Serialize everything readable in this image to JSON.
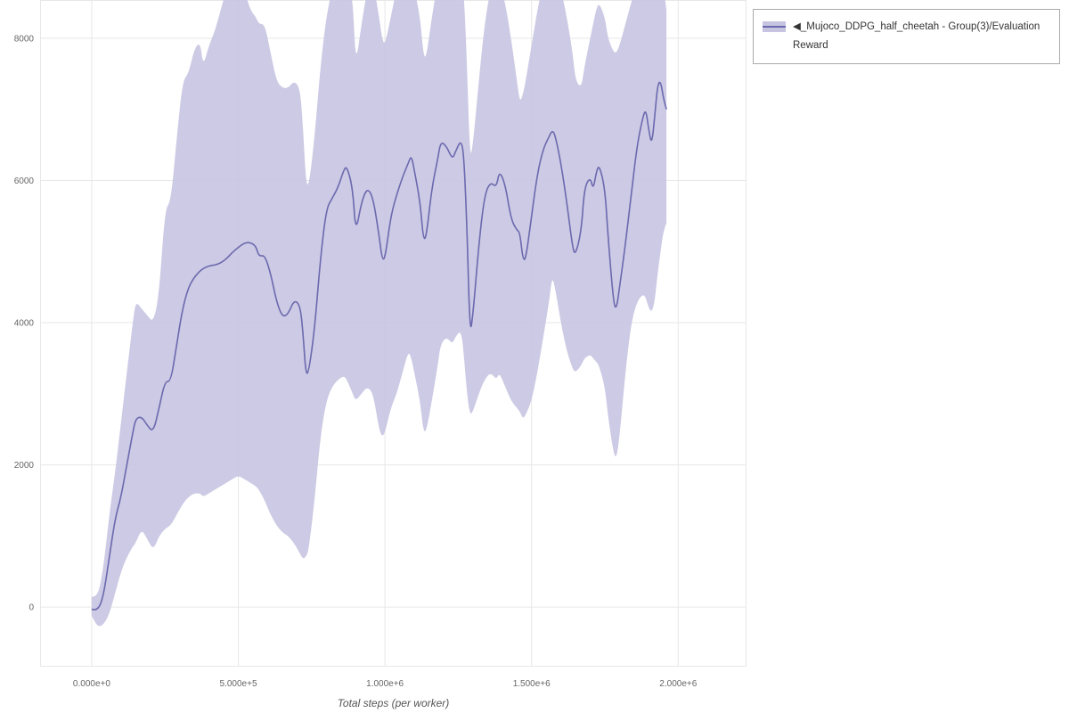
{
  "legend": {
    "items": [
      {
        "label": "◀_Mujoco_DDPG_half_cheetah - Group(3)/Evaluation Reward",
        "line_color": "#6b69ae",
        "band_color": "#c6c4e1"
      }
    ]
  },
  "chart_data": {
    "type": "line",
    "title": "",
    "xlabel": "Total steps (per worker)",
    "ylabel": "",
    "grid": true,
    "legend_position": "top-right-outside",
    "xlim": [
      -176000,
      2233000
    ],
    "ylim": [
      -838,
      8538
    ],
    "x_ticks": [
      {
        "value": 0,
        "label": "0.000e+0"
      },
      {
        "value": 500000,
        "label": "5.000e+5"
      },
      {
        "value": 1000000,
        "label": "1.000e+6"
      },
      {
        "value": 1500000,
        "label": "1.500e+6"
      },
      {
        "value": 2000000,
        "label": "2.000e+6"
      }
    ],
    "y_ticks": [
      {
        "value": 0,
        "label": "0"
      },
      {
        "value": 2000,
        "label": "2000"
      },
      {
        "value": 4000,
        "label": "4000"
      },
      {
        "value": 6000,
        "label": "6000"
      },
      {
        "value": 8000,
        "label": "8000"
      }
    ],
    "series": [
      {
        "name": "◀_Mujoco_DDPG_half_cheetah - Group(3)/Evaluation Reward",
        "line_color": "#6b69ae",
        "band_color": "#c6c4e1",
        "band_opacity": 0.9,
        "points_format": [
          "x",
          "y",
          "lo",
          "hi"
        ],
        "points": [
          [
            0,
            -30,
            -120,
            150
          ],
          [
            20000,
            -60,
            -280,
            120
          ],
          [
            40000,
            150,
            -250,
            550
          ],
          [
            60000,
            700,
            -100,
            1300
          ],
          [
            80000,
            1250,
            200,
            1900
          ],
          [
            100000,
            1550,
            500,
            2600
          ],
          [
            120000,
            2000,
            700,
            3300
          ],
          [
            140000,
            2450,
            850,
            4000
          ],
          [
            150000,
            2650,
            900,
            4300
          ],
          [
            170000,
            2680,
            1100,
            4200
          ],
          [
            190000,
            2550,
            950,
            4100
          ],
          [
            210000,
            2460,
            800,
            4000
          ],
          [
            230000,
            2800,
            1000,
            4400
          ],
          [
            250000,
            3180,
            1100,
            5600
          ],
          [
            270000,
            3170,
            1150,
            5700
          ],
          [
            290000,
            3700,
            1300,
            6600
          ],
          [
            310000,
            4200,
            1450,
            7400
          ],
          [
            330000,
            4500,
            1550,
            7500
          ],
          [
            350000,
            4640,
            1600,
            7850
          ],
          [
            370000,
            4730,
            1600,
            7950
          ],
          [
            380000,
            4760,
            1550,
            7600
          ],
          [
            400000,
            4800,
            1600,
            7900
          ],
          [
            420000,
            4810,
            1650,
            8100
          ],
          [
            440000,
            4840,
            1700,
            8400
          ],
          [
            460000,
            4900,
            1750,
            8700
          ],
          [
            480000,
            4990,
            1800,
            8800
          ],
          [
            500000,
            5060,
            1850,
            8800
          ],
          [
            520000,
            5120,
            1800,
            8700
          ],
          [
            540000,
            5130,
            1750,
            8400
          ],
          [
            560000,
            5080,
            1700,
            8300
          ],
          [
            570000,
            4930,
            1650,
            8200
          ],
          [
            590000,
            4950,
            1500,
            8200
          ],
          [
            610000,
            4700,
            1300,
            7800
          ],
          [
            630000,
            4300,
            1150,
            7400
          ],
          [
            650000,
            4080,
            1050,
            7300
          ],
          [
            670000,
            4120,
            1000,
            7300
          ],
          [
            690000,
            4320,
            900,
            7400
          ],
          [
            710000,
            4250,
            750,
            7300
          ],
          [
            720000,
            3900,
            680,
            6800
          ],
          [
            730000,
            3280,
            700,
            6000
          ],
          [
            740000,
            3300,
            800,
            5900
          ],
          [
            760000,
            3900,
            1500,
            6600
          ],
          [
            780000,
            4900,
            2400,
            7600
          ],
          [
            800000,
            5600,
            2900,
            8300
          ],
          [
            820000,
            5750,
            3100,
            8700
          ],
          [
            840000,
            5900,
            3200,
            8800
          ],
          [
            860000,
            6150,
            3250,
            8800
          ],
          [
            870000,
            6200,
            3200,
            8800
          ],
          [
            890000,
            5900,
            3000,
            8600
          ],
          [
            900000,
            5250,
            2900,
            7600
          ],
          [
            920000,
            5700,
            3000,
            8200
          ],
          [
            940000,
            5900,
            3100,
            8700
          ],
          [
            960000,
            5750,
            3000,
            8800
          ],
          [
            980000,
            5230,
            2500,
            8300
          ],
          [
            990000,
            4900,
            2400,
            8000
          ],
          [
            1000000,
            4890,
            2450,
            7900
          ],
          [
            1020000,
            5500,
            2800,
            8300
          ],
          [
            1040000,
            5800,
            3000,
            8700
          ],
          [
            1060000,
            6050,
            3300,
            8800
          ],
          [
            1080000,
            6250,
            3600,
            8800
          ],
          [
            1090000,
            6350,
            3500,
            8800
          ],
          [
            1100000,
            6150,
            3300,
            8700
          ],
          [
            1120000,
            5700,
            2900,
            8300
          ],
          [
            1130000,
            5200,
            2500,
            7800
          ],
          [
            1140000,
            5170,
            2450,
            7700
          ],
          [
            1160000,
            5900,
            2900,
            8300
          ],
          [
            1180000,
            6300,
            3400,
            8800
          ],
          [
            1190000,
            6550,
            3700,
            8800
          ],
          [
            1210000,
            6480,
            3800,
            8800
          ],
          [
            1230000,
            6300,
            3700,
            8800
          ],
          [
            1240000,
            6400,
            3800,
            8800
          ],
          [
            1260000,
            6580,
            3900,
            8800
          ],
          [
            1270000,
            6300,
            3500,
            8600
          ],
          [
            1280000,
            5300,
            3000,
            7600
          ],
          [
            1290000,
            3830,
            2700,
            6300
          ],
          [
            1300000,
            4100,
            2750,
            6500
          ],
          [
            1320000,
            5100,
            3000,
            7400
          ],
          [
            1340000,
            5800,
            3200,
            8200
          ],
          [
            1360000,
            5980,
            3300,
            8700
          ],
          [
            1380000,
            5900,
            3200,
            8800
          ],
          [
            1390000,
            6140,
            3300,
            8800
          ],
          [
            1410000,
            5950,
            3100,
            8500
          ],
          [
            1430000,
            5450,
            2900,
            8000
          ],
          [
            1450000,
            5300,
            2800,
            7400
          ],
          [
            1460000,
            5270,
            2750,
            7100
          ],
          [
            1470000,
            4900,
            2650,
            7200
          ],
          [
            1480000,
            4880,
            2700,
            7400
          ],
          [
            1500000,
            5500,
            2900,
            7900
          ],
          [
            1520000,
            6100,
            3300,
            8400
          ],
          [
            1540000,
            6450,
            3800,
            8800
          ],
          [
            1560000,
            6620,
            4300,
            8800
          ],
          [
            1570000,
            6700,
            4650,
            8800
          ],
          [
            1580000,
            6650,
            4500,
            8800
          ],
          [
            1600000,
            6250,
            4000,
            8700
          ],
          [
            1620000,
            5700,
            3600,
            8300
          ],
          [
            1640000,
            5050,
            3350,
            7800
          ],
          [
            1650000,
            4950,
            3300,
            7400
          ],
          [
            1670000,
            5300,
            3400,
            7300
          ],
          [
            1680000,
            5900,
            3500,
            7600
          ],
          [
            1700000,
            6050,
            3550,
            8000
          ],
          [
            1710000,
            5870,
            3500,
            8200
          ],
          [
            1720000,
            6100,
            3450,
            8400
          ],
          [
            1730000,
            6230,
            3400,
            8500
          ],
          [
            1750000,
            5900,
            3100,
            8300
          ],
          [
            1760000,
            5250,
            2700,
            8000
          ],
          [
            1780000,
            4250,
            2150,
            7800
          ],
          [
            1790000,
            4200,
            2100,
            7800
          ],
          [
            1800000,
            4500,
            2400,
            7900
          ],
          [
            1820000,
            5100,
            3300,
            8200
          ],
          [
            1840000,
            5800,
            4000,
            8500
          ],
          [
            1860000,
            6500,
            4300,
            8800
          ],
          [
            1880000,
            6900,
            4400,
            8800
          ],
          [
            1890000,
            7000,
            4350,
            8800
          ],
          [
            1900000,
            6700,
            4200,
            8700
          ],
          [
            1910000,
            6500,
            4150,
            8600
          ],
          [
            1920000,
            6900,
            4300,
            8700
          ],
          [
            1930000,
            7350,
            4700,
            8800
          ],
          [
            1940000,
            7400,
            5000,
            8800
          ],
          [
            1950000,
            7150,
            5300,
            8700
          ],
          [
            1960000,
            7000,
            5400,
            8400
          ]
        ]
      }
    ]
  }
}
